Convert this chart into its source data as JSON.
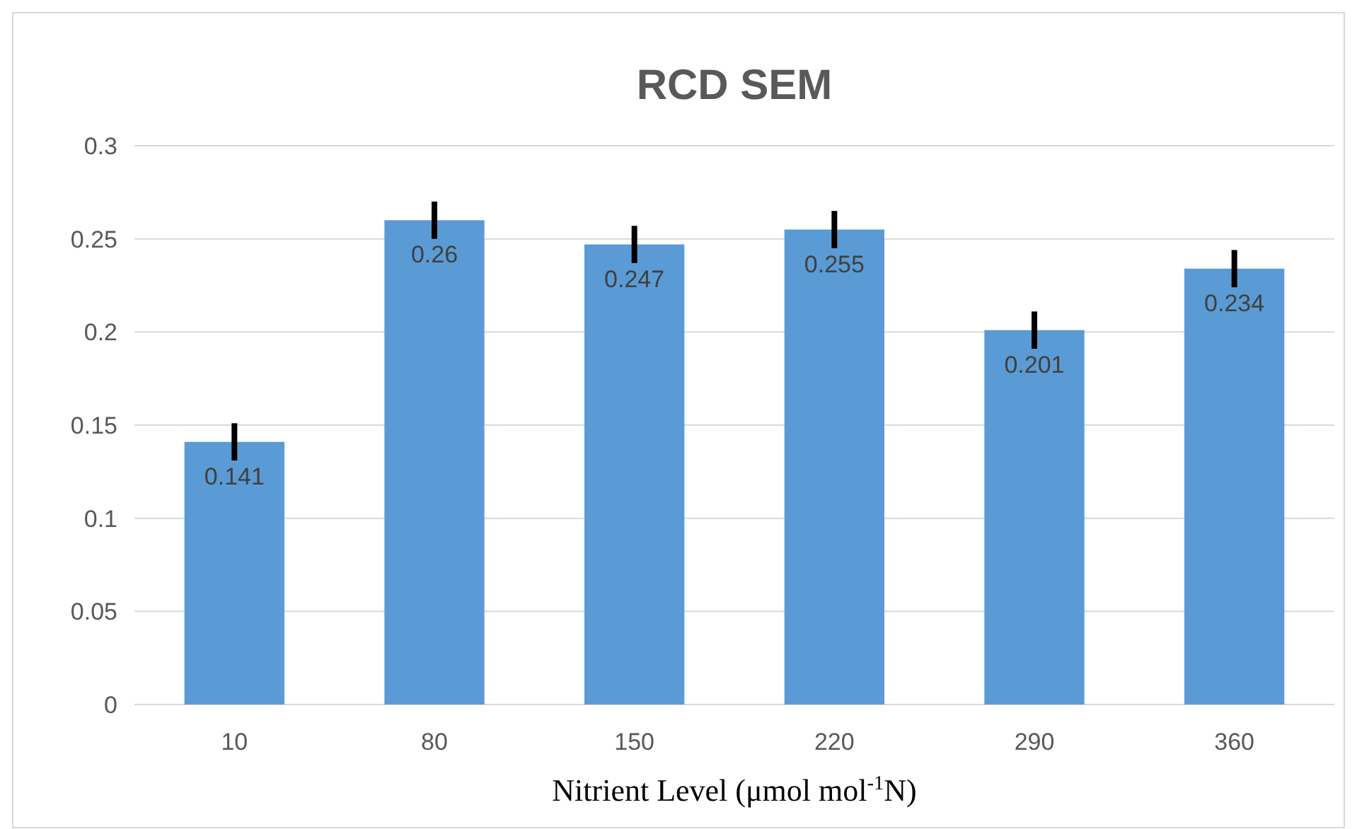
{
  "chart_data": {
    "type": "bar",
    "title": "RCD SEM",
    "xlabel": "Nitrient Level (μmol mol$^{-1}$N)",
    "categories": [
      "10",
      "80",
      "150",
      "220",
      "290",
      "360"
    ],
    "values": [
      0.141,
      0.26,
      0.247,
      0.255,
      0.201,
      0.234
    ],
    "errors": [
      0.01,
      0.01,
      0.01,
      0.01,
      0.01,
      0.01
    ],
    "color": "#5b9bd5",
    "data_labels": true,
    "ylim": [
      0,
      0.3
    ],
    "yticks": [
      0,
      0.05,
      0.1,
      0.15,
      0.2,
      0.25,
      0.3
    ],
    "grid": "y"
  }
}
